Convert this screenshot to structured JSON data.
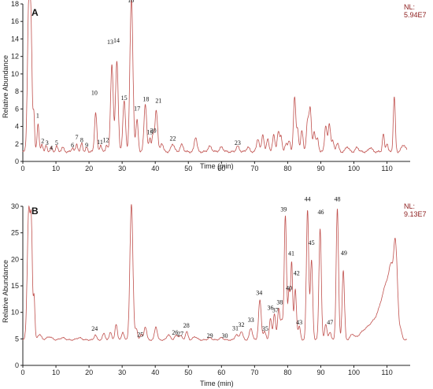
{
  "chart_data": [
    {
      "type": "line",
      "panel_label": "A",
      "nl_label": "NL:",
      "nl_value": "5.94E7",
      "xlabel": "Time (min)",
      "ylabel": "Relative Abundance",
      "xlim": [
        0,
        117
      ],
      "ylim": [
        0,
        18
      ],
      "xticks": [
        "0",
        "10",
        "20",
        "30",
        "40",
        "50",
        "60",
        "70",
        "80",
        "90",
        "100",
        "110"
      ],
      "yticks": [
        "0",
        "2",
        "4",
        "6",
        "8",
        "10",
        "12",
        "14",
        "16",
        "18"
      ],
      "color": "#c0504d",
      "baseline": 1.1,
      "peaks": [
        [
          1.8,
          17.0,
          0.4
        ],
        [
          2.5,
          12.0,
          0.3
        ],
        [
          3.3,
          4.5,
          0.25
        ],
        [
          4.6,
          3.2,
          0.3
        ],
        [
          5.8,
          0.8,
          0.3
        ],
        [
          7.0,
          0.7,
          0.3
        ],
        [
          8.5,
          0.5,
          0.3
        ],
        [
          10.2,
          0.7,
          0.3
        ],
        [
          12.0,
          0.5,
          0.4
        ],
        [
          15.0,
          0.5,
          0.3
        ],
        [
          16.3,
          0.9,
          0.3
        ],
        [
          17.8,
          1.0,
          0.3
        ],
        [
          19.3,
          0.5,
          0.3
        ],
        [
          22.0,
          4.5,
          0.35
        ],
        [
          23.5,
          0.8,
          0.3
        ],
        [
          25.3,
          0.8,
          0.3
        ],
        [
          26.9,
          10.0,
          0.4
        ],
        [
          28.4,
          10.4,
          0.4
        ],
        [
          30.6,
          5.8,
          0.4
        ],
        [
          32.8,
          17.5,
          0.45
        ],
        [
          34.5,
          3.6,
          0.35
        ],
        [
          37.0,
          5.5,
          0.4
        ],
        [
          38.4,
          1.6,
          0.3
        ],
        [
          39.3,
          1.8,
          0.3
        ],
        [
          40.3,
          4.8,
          0.4
        ],
        [
          42.0,
          1.0,
          0.4
        ],
        [
          45.3,
          0.9,
          0.5
        ],
        [
          48.0,
          0.8,
          0.5
        ],
        [
          52.2,
          1.7,
          0.4
        ],
        [
          56.5,
          0.6,
          0.6
        ],
        [
          60.0,
          0.5,
          0.6
        ],
        [
          64.9,
          0.6,
          0.5
        ],
        [
          68.0,
          0.5,
          0.5
        ],
        [
          71.0,
          1.5,
          0.4
        ],
        [
          72.5,
          2.0,
          0.35
        ],
        [
          74.0,
          1.5,
          0.35
        ],
        [
          75.8,
          2.0,
          0.35
        ],
        [
          77.2,
          2.3,
          0.35
        ],
        [
          78.0,
          1.7,
          0.3
        ],
        [
          79.5,
          1.0,
          0.35
        ],
        [
          80.5,
          1.2,
          0.35
        ],
        [
          82.1,
          6.2,
          0.35
        ],
        [
          83.0,
          2.5,
          0.3
        ],
        [
          84.3,
          2.5,
          0.35
        ],
        [
          86.0,
          3.5,
          0.35
        ],
        [
          86.8,
          4.8,
          0.35
        ],
        [
          88.0,
          2.3,
          0.35
        ],
        [
          89.0,
          1.5,
          0.35
        ],
        [
          91.5,
          3.0,
          0.35
        ],
        [
          92.6,
          3.2,
          0.35
        ],
        [
          93.6,
          1.2,
          0.35
        ],
        [
          95.0,
          1.0,
          0.4
        ],
        [
          98.0,
          0.6,
          0.5
        ],
        [
          101.0,
          0.5,
          0.5
        ],
        [
          105.0,
          0.5,
          0.5
        ],
        [
          108.9,
          2.0,
          0.3
        ],
        [
          110.0,
          1.0,
          0.3
        ],
        [
          112.2,
          6.3,
          0.3
        ],
        [
          115.0,
          0.8,
          0.6
        ]
      ],
      "labels": [
        {
          "t": "1",
          "x": 4.5,
          "y": 5.0
        },
        {
          "t": "2",
          "x": 6.0,
          "y": 2.1
        },
        {
          "t": "3",
          "x": 7.3,
          "y": 1.9
        },
        {
          "t": "4",
          "x": 8.6,
          "y": 1.3
        },
        {
          "t": "5",
          "x": 10.2,
          "y": 1.9
        },
        {
          "t": "6",
          "x": 15.0,
          "y": 1.6
        },
        {
          "t": "7",
          "x": 16.3,
          "y": 2.5
        },
        {
          "t": "8",
          "x": 17.8,
          "y": 2.2
        },
        {
          "t": "9",
          "x": 19.3,
          "y": 1.6
        },
        {
          "t": "10",
          "x": 21.6,
          "y": 7.6
        },
        {
          "t": "11",
          "x": 23.3,
          "y": 2.0
        },
        {
          "t": "12",
          "x": 25.1,
          "y": 2.2
        },
        {
          "t": "13",
          "x": 26.4,
          "y": 13.4
        },
        {
          "t": "14",
          "x": 28.3,
          "y": 13.6
        },
        {
          "t": "15",
          "x": 30.6,
          "y": 7.0
        },
        {
          "t": "16",
          "x": 32.6,
          "y": 18.2
        },
        {
          "t": "17",
          "x": 34.5,
          "y": 5.8
        },
        {
          "t": "18",
          "x": 37.2,
          "y": 6.9
        },
        {
          "t": "19",
          "x": 38.4,
          "y": 3.1
        },
        {
          "t": "20",
          "x": 39.4,
          "y": 3.3
        },
        {
          "t": "21",
          "x": 41.0,
          "y": 6.7
        },
        {
          "t": "22",
          "x": 45.3,
          "y": 2.4
        },
        {
          "t": "23",
          "x": 64.9,
          "y": 1.9
        }
      ]
    },
    {
      "type": "line",
      "panel_label": "B",
      "nl_label": "NL:",
      "nl_value": "9.13E7",
      "xlabel": "Time (min)",
      "ylabel": "Relative Abundance",
      "xlim": [
        0,
        117
      ],
      "ylim": [
        0,
        30
      ],
      "xticks": [
        "0",
        "10",
        "20",
        "30",
        "40",
        "50",
        "60",
        "70",
        "80",
        "90",
        "100",
        "110"
      ],
      "yticks": [
        "0",
        "5",
        "10",
        "15",
        "20",
        "25",
        "30"
      ],
      "color": "#c0504d",
      "baseline": 4.8,
      "peaks": [
        [
          1.8,
          24.5,
          0.45
        ],
        [
          2.6,
          18.0,
          0.3
        ],
        [
          3.4,
          8.0,
          0.25
        ],
        [
          5.0,
          1.0,
          0.6
        ],
        [
          8.0,
          0.6,
          0.8
        ],
        [
          12.0,
          0.4,
          0.8
        ],
        [
          17.0,
          0.4,
          0.8
        ],
        [
          21.9,
          1.0,
          0.35
        ],
        [
          24.5,
          1.2,
          0.4
        ],
        [
          26.5,
          1.5,
          0.35
        ],
        [
          28.2,
          3.0,
          0.35
        ],
        [
          30.2,
          1.5,
          0.35
        ],
        [
          32.8,
          25.5,
          0.45
        ],
        [
          34.3,
          2.0,
          0.35
        ],
        [
          35.7,
          1.0,
          0.35
        ],
        [
          37.0,
          2.5,
          0.4
        ],
        [
          40.2,
          2.5,
          0.4
        ],
        [
          44.0,
          1.0,
          0.5
        ],
        [
          46.3,
          0.8,
          0.5
        ],
        [
          47.6,
          0.8,
          0.5
        ],
        [
          49.5,
          1.5,
          0.4
        ],
        [
          52.0,
          0.6,
          0.6
        ],
        [
          56.5,
          0.4,
          0.6
        ],
        [
          60.0,
          0.4,
          0.6
        ],
        [
          64.5,
          1.0,
          0.45
        ],
        [
          66.0,
          1.6,
          0.45
        ],
        [
          68.9,
          2.2,
          0.45
        ],
        [
          71.6,
          7.5,
          0.4
        ],
        [
          73.0,
          1.6,
          0.4
        ],
        [
          74.8,
          4.0,
          0.35
        ],
        [
          76.0,
          5.0,
          0.35
        ],
        [
          77.3,
          5.8,
          0.35
        ],
        [
          78.2,
          3.5,
          0.35
        ],
        [
          79.3,
          23.5,
          0.35
        ],
        [
          80.4,
          9.0,
          0.3
        ],
        [
          81.2,
          14.5,
          0.3
        ],
        [
          82.3,
          9.5,
          0.35
        ],
        [
          83.5,
          2.5,
          0.35
        ],
        [
          86.0,
          24.5,
          0.35
        ],
        [
          87.2,
          15.0,
          0.35
        ],
        [
          89.8,
          21.0,
          0.35
        ],
        [
          91.5,
          3.0,
          0.35
        ],
        [
          92.8,
          1.5,
          0.35
        ],
        [
          95.0,
          24.8,
          0.35
        ],
        [
          96.8,
          13.0,
          0.35
        ],
        [
          99.5,
          1.0,
          0.6
        ],
        [
          103.0,
          1.5,
          1.5
        ],
        [
          106.0,
          3.0,
          1.5
        ],
        [
          108.5,
          5.5,
          1.2
        ],
        [
          110.2,
          8.0,
          1.0
        ],
        [
          111.5,
          10.0,
          0.7
        ],
        [
          112.4,
          11.0,
          0.4
        ],
        [
          113.0,
          9.0,
          0.4
        ],
        [
          114.0,
          2.0,
          0.5
        ]
      ],
      "labels": [
        {
          "t": "24",
          "x": 21.7,
          "y": 6.5
        },
        {
          "t": "25",
          "x": 35.5,
          "y": 5.4
        },
        {
          "t": "26",
          "x": 46.0,
          "y": 5.8
        },
        {
          "t": "27",
          "x": 47.6,
          "y": 5.6
        },
        {
          "t": "28",
          "x": 49.4,
          "y": 7.1
        },
        {
          "t": "29",
          "x": 56.5,
          "y": 5.2
        },
        {
          "t": "30",
          "x": 61.0,
          "y": 5.2
        },
        {
          "t": "31",
          "x": 64.2,
          "y": 6.6
        },
        {
          "t": "32",
          "x": 66.0,
          "y": 7.3
        },
        {
          "t": "33",
          "x": 68.9,
          "y": 8.2
        },
        {
          "t": "34",
          "x": 71.4,
          "y": 13.3
        },
        {
          "t": "35",
          "x": 73.2,
          "y": 6.5
        },
        {
          "t": "36",
          "x": 74.8,
          "y": 10.5
        },
        {
          "t": "37",
          "x": 76.3,
          "y": 10.0
        },
        {
          "t": "38",
          "x": 77.6,
          "y": 11.5
        },
        {
          "t": "39",
          "x": 78.8,
          "y": 29.0
        },
        {
          "t": "40",
          "x": 80.4,
          "y": 14.2
        },
        {
          "t": "41",
          "x": 81.1,
          "y": 20.7
        },
        {
          "t": "42",
          "x": 82.7,
          "y": 17.0
        },
        {
          "t": "43",
          "x": 83.5,
          "y": 7.7
        },
        {
          "t": "44",
          "x": 86.0,
          "y": 31.0
        },
        {
          "t": "45",
          "x": 87.2,
          "y": 22.7
        },
        {
          "t": "46",
          "x": 90.0,
          "y": 28.5
        },
        {
          "t": "47",
          "x": 92.8,
          "y": 7.7
        },
        {
          "t": "48",
          "x": 95.0,
          "y": 31.0
        },
        {
          "t": "49",
          "x": 97.0,
          "y": 20.8
        }
      ]
    }
  ]
}
